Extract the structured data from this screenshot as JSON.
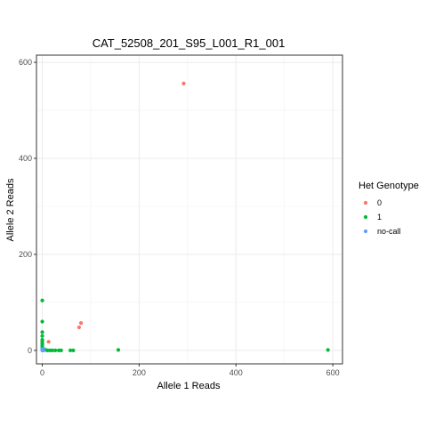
{
  "chart_data": {
    "type": "scatter",
    "title": "CAT_52508_201_S95_L001_R1_001",
    "xlabel": "Allele 1 Reads",
    "ylabel": "Allele 2 Reads",
    "xlim": [
      -12,
      620
    ],
    "ylim": [
      -28,
      615
    ],
    "x_ticks": [
      0,
      200,
      400,
      600
    ],
    "y_ticks": [
      0,
      200,
      400,
      600
    ],
    "grid": true,
    "legend": {
      "title": "Het Genotype",
      "placement": "right",
      "entries": [
        "0",
        "1",
        "no-call"
      ]
    },
    "colors": {
      "0": "#F8766D",
      "1": "#00BA38",
      "no-call": "#619CFF"
    },
    "series": [
      {
        "name": "0",
        "points": [
          [
            292,
            556
          ],
          [
            80,
            57
          ],
          [
            76,
            48
          ],
          [
            13,
            18
          ]
        ]
      },
      {
        "name": "1",
        "points": [
          [
            0,
            104
          ],
          [
            0,
            60
          ],
          [
            0,
            38
          ],
          [
            0,
            30
          ],
          [
            0,
            22
          ],
          [
            0,
            18
          ],
          [
            0,
            14
          ],
          [
            0,
            10
          ],
          [
            0,
            6
          ],
          [
            2,
            3
          ],
          [
            4,
            2
          ],
          [
            7,
            1
          ],
          [
            11,
            0
          ],
          [
            16,
            0
          ],
          [
            21,
            0
          ],
          [
            27,
            0
          ],
          [
            34,
            0
          ],
          [
            39,
            0
          ],
          [
            58,
            0
          ],
          [
            64,
            0
          ],
          [
            157,
            1
          ],
          [
            590,
            1
          ]
        ]
      },
      {
        "name": "no-call",
        "points": [
          [
            0,
            0
          ],
          [
            1,
            1
          ],
          [
            2,
            0
          ],
          [
            0,
            3
          ],
          [
            3,
            2
          ]
        ]
      }
    ]
  }
}
